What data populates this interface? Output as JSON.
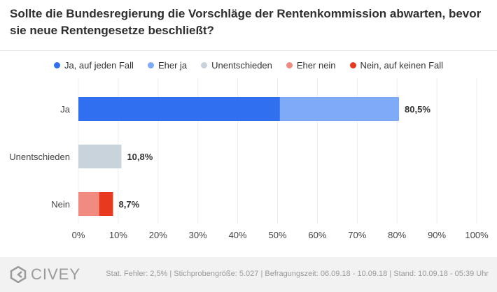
{
  "title": "Sollte die Bundesregierung die Vorschläge der Rentenkommission abwarten, bevor sie neue Rentengesetze beschließt?",
  "legend": [
    {
      "label": "Ja, auf jeden Fall",
      "color": "#2f6ff0"
    },
    {
      "label": "Eher ja",
      "color": "#7eaaf7"
    },
    {
      "label": "Unentschieden",
      "color": "#c8d3dc"
    },
    {
      "label": "Eher nein",
      "color": "#f28b7f"
    },
    {
      "label": "Nein, auf keinen Fall",
      "color": "#e8391f"
    }
  ],
  "chart_data": {
    "type": "bar",
    "orientation": "horizontal",
    "stacked": true,
    "categories": [
      "Ja",
      "Unentschieden",
      "Nein"
    ],
    "series": [
      {
        "name": "Ja, auf jeden Fall",
        "values": [
          50.6,
          0,
          0
        ],
        "color": "#2f6ff0"
      },
      {
        "name": "Eher ja",
        "values": [
          29.9,
          0,
          0
        ],
        "color": "#7eaaf7"
      },
      {
        "name": "Unentschieden",
        "values": [
          0,
          10.8,
          0
        ],
        "color": "#c8d3dc"
      },
      {
        "name": "Eher nein",
        "values": [
          0,
          0,
          5.2
        ],
        "color": "#f28b7f"
      },
      {
        "name": "Nein, auf keinen Fall",
        "values": [
          0,
          0,
          3.5
        ],
        "color": "#e8391f"
      }
    ],
    "total_labels": [
      "80,5%",
      "10,8%",
      "8,7%"
    ],
    "xlim": [
      0,
      100
    ],
    "xticks": [
      0,
      10,
      20,
      30,
      40,
      50,
      60,
      70,
      80,
      90,
      100
    ],
    "xtick_labels": [
      "0%",
      "10%",
      "20%",
      "30%",
      "40%",
      "50%",
      "60%",
      "70%",
      "80%",
      "90%",
      "100%"
    ],
    "grid": true,
    "legend_position": "top"
  },
  "footer": {
    "brand": "CIVEY",
    "note": "Stat. Fehler: 2,5% | Stichprobengröße: 5.027 | Befragungszeit: 06.09.18 - 10.09.18 | Stand: 10.09.18 - 05:39 Uhr"
  }
}
